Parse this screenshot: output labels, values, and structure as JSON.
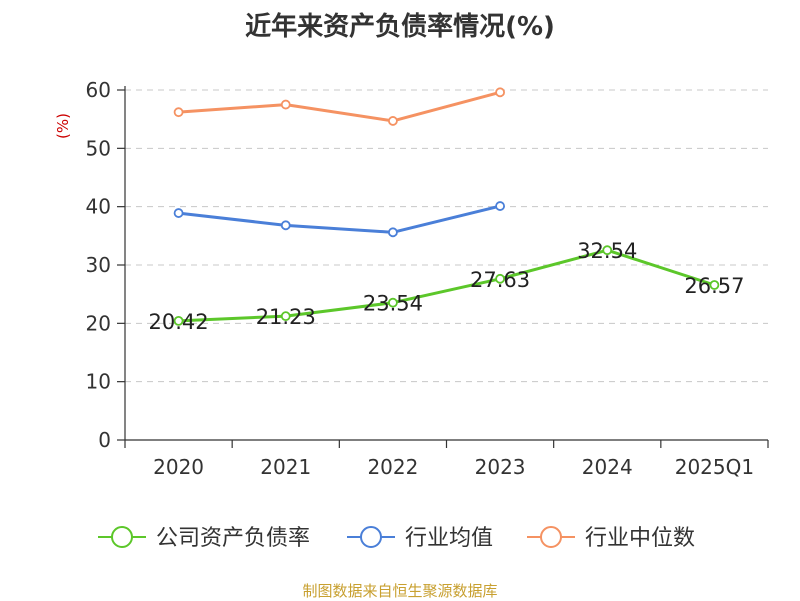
{
  "chart_data": {
    "type": "line",
    "title": "近年来资产负债率情况(%)",
    "ylabel": "(%)",
    "xlabel": "",
    "categories": [
      "2020",
      "2021",
      "2022",
      "2023",
      "2024",
      "2025Q1"
    ],
    "ylim": [
      0,
      60
    ],
    "yticks": [
      0,
      10,
      20,
      30,
      40,
      50,
      60
    ],
    "grid": true,
    "legend_position": "bottom",
    "series": [
      {
        "name": "公司资产负债率",
        "color": "#5cc72a",
        "values": [
          20.42,
          21.23,
          23.54,
          27.63,
          32.54,
          26.57
        ],
        "labels": [
          "20.42",
          "21.23",
          "23.54",
          "27.63",
          "32.54",
          "26.57"
        ]
      },
      {
        "name": "行业均值",
        "color": "#4a7fd8",
        "values": [
          38.9,
          36.8,
          35.6,
          40.1,
          null,
          null
        ]
      },
      {
        "name": "行业中位数",
        "color": "#f59262",
        "values": [
          56.2,
          57.5,
          54.7,
          59.6,
          null,
          null
        ]
      }
    ]
  },
  "source_note": "制图数据来自恒生聚源数据库"
}
